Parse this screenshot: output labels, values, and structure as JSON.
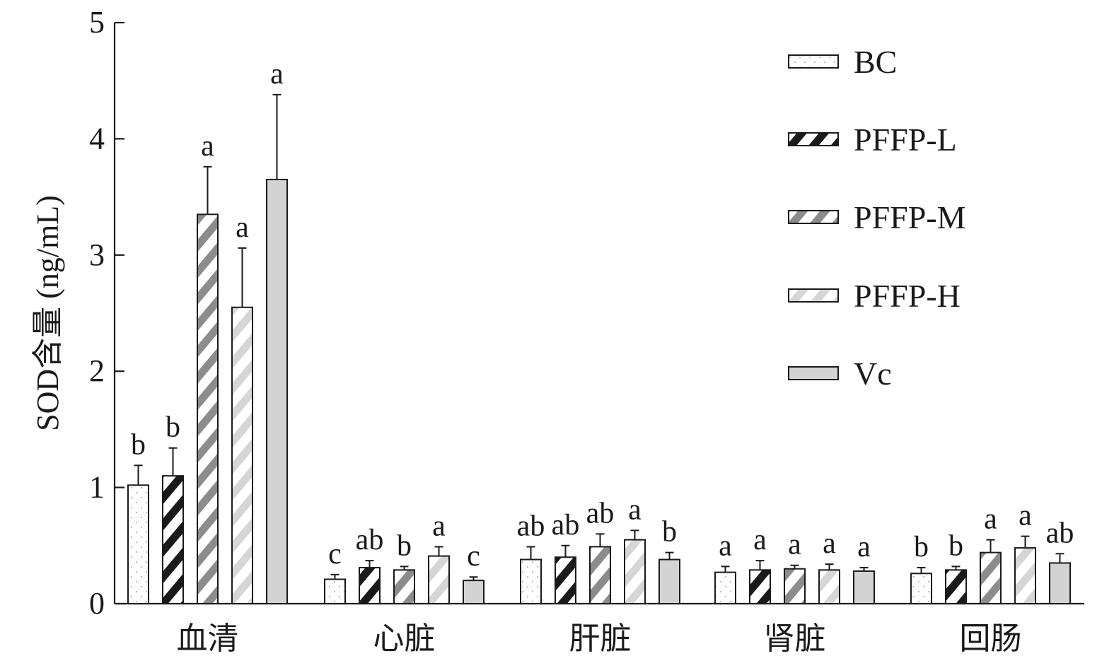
{
  "chart_data": {
    "type": "bar",
    "title": "",
    "xlabel": "",
    "ylabel": "SOD含量 (ng/mL)",
    "ylim": [
      0,
      5
    ],
    "yticks": [
      0,
      1,
      2,
      3,
      4,
      5
    ],
    "grid": false,
    "legend_position": "top-right",
    "categories": [
      "血清",
      "心脏",
      "肝脏",
      "肾脏",
      "回肠"
    ],
    "series": [
      {
        "name": "BC",
        "pattern": "dots",
        "color": "#ffffff",
        "values": [
          1.02,
          0.21,
          0.38,
          0.27,
          0.26
        ],
        "errors": [
          0.17,
          0.04,
          0.11,
          0.05,
          0.05
        ],
        "labels": [
          "b",
          "c",
          "ab",
          "a",
          "b"
        ]
      },
      {
        "name": "PFFP-L",
        "pattern": "hatch-black",
        "color": "#1a1a1a",
        "values": [
          1.1,
          0.31,
          0.4,
          0.29,
          0.29
        ],
        "errors": [
          0.24,
          0.06,
          0.1,
          0.08,
          0.03
        ],
        "labels": [
          "b",
          "ab",
          "ab",
          "a",
          "b"
        ]
      },
      {
        "name": "PFFP-M",
        "pattern": "hatch-gray",
        "color": "#8c8c8c",
        "values": [
          3.35,
          0.29,
          0.49,
          0.3,
          0.44
        ],
        "errors": [
          0.41,
          0.03,
          0.11,
          0.03,
          0.11
        ],
        "labels": [
          "a",
          "b",
          "ab",
          "a",
          "a"
        ]
      },
      {
        "name": "PFFP-H",
        "pattern": "hatch-light",
        "color": "#d6d6d6",
        "values": [
          2.55,
          0.41,
          0.55,
          0.29,
          0.48
        ],
        "errors": [
          0.51,
          0.08,
          0.08,
          0.05,
          0.1
        ],
        "labels": [
          "a",
          "a",
          "a",
          "a",
          "a"
        ]
      },
      {
        "name": "Vc",
        "pattern": "solid",
        "color": "#d3d3d3",
        "values": [
          3.65,
          0.2,
          0.38,
          0.28,
          0.35
        ],
        "errors": [
          0.73,
          0.03,
          0.06,
          0.03,
          0.08
        ],
        "labels": [
          "a",
          "c",
          "b",
          "a",
          "ab"
        ]
      }
    ]
  }
}
